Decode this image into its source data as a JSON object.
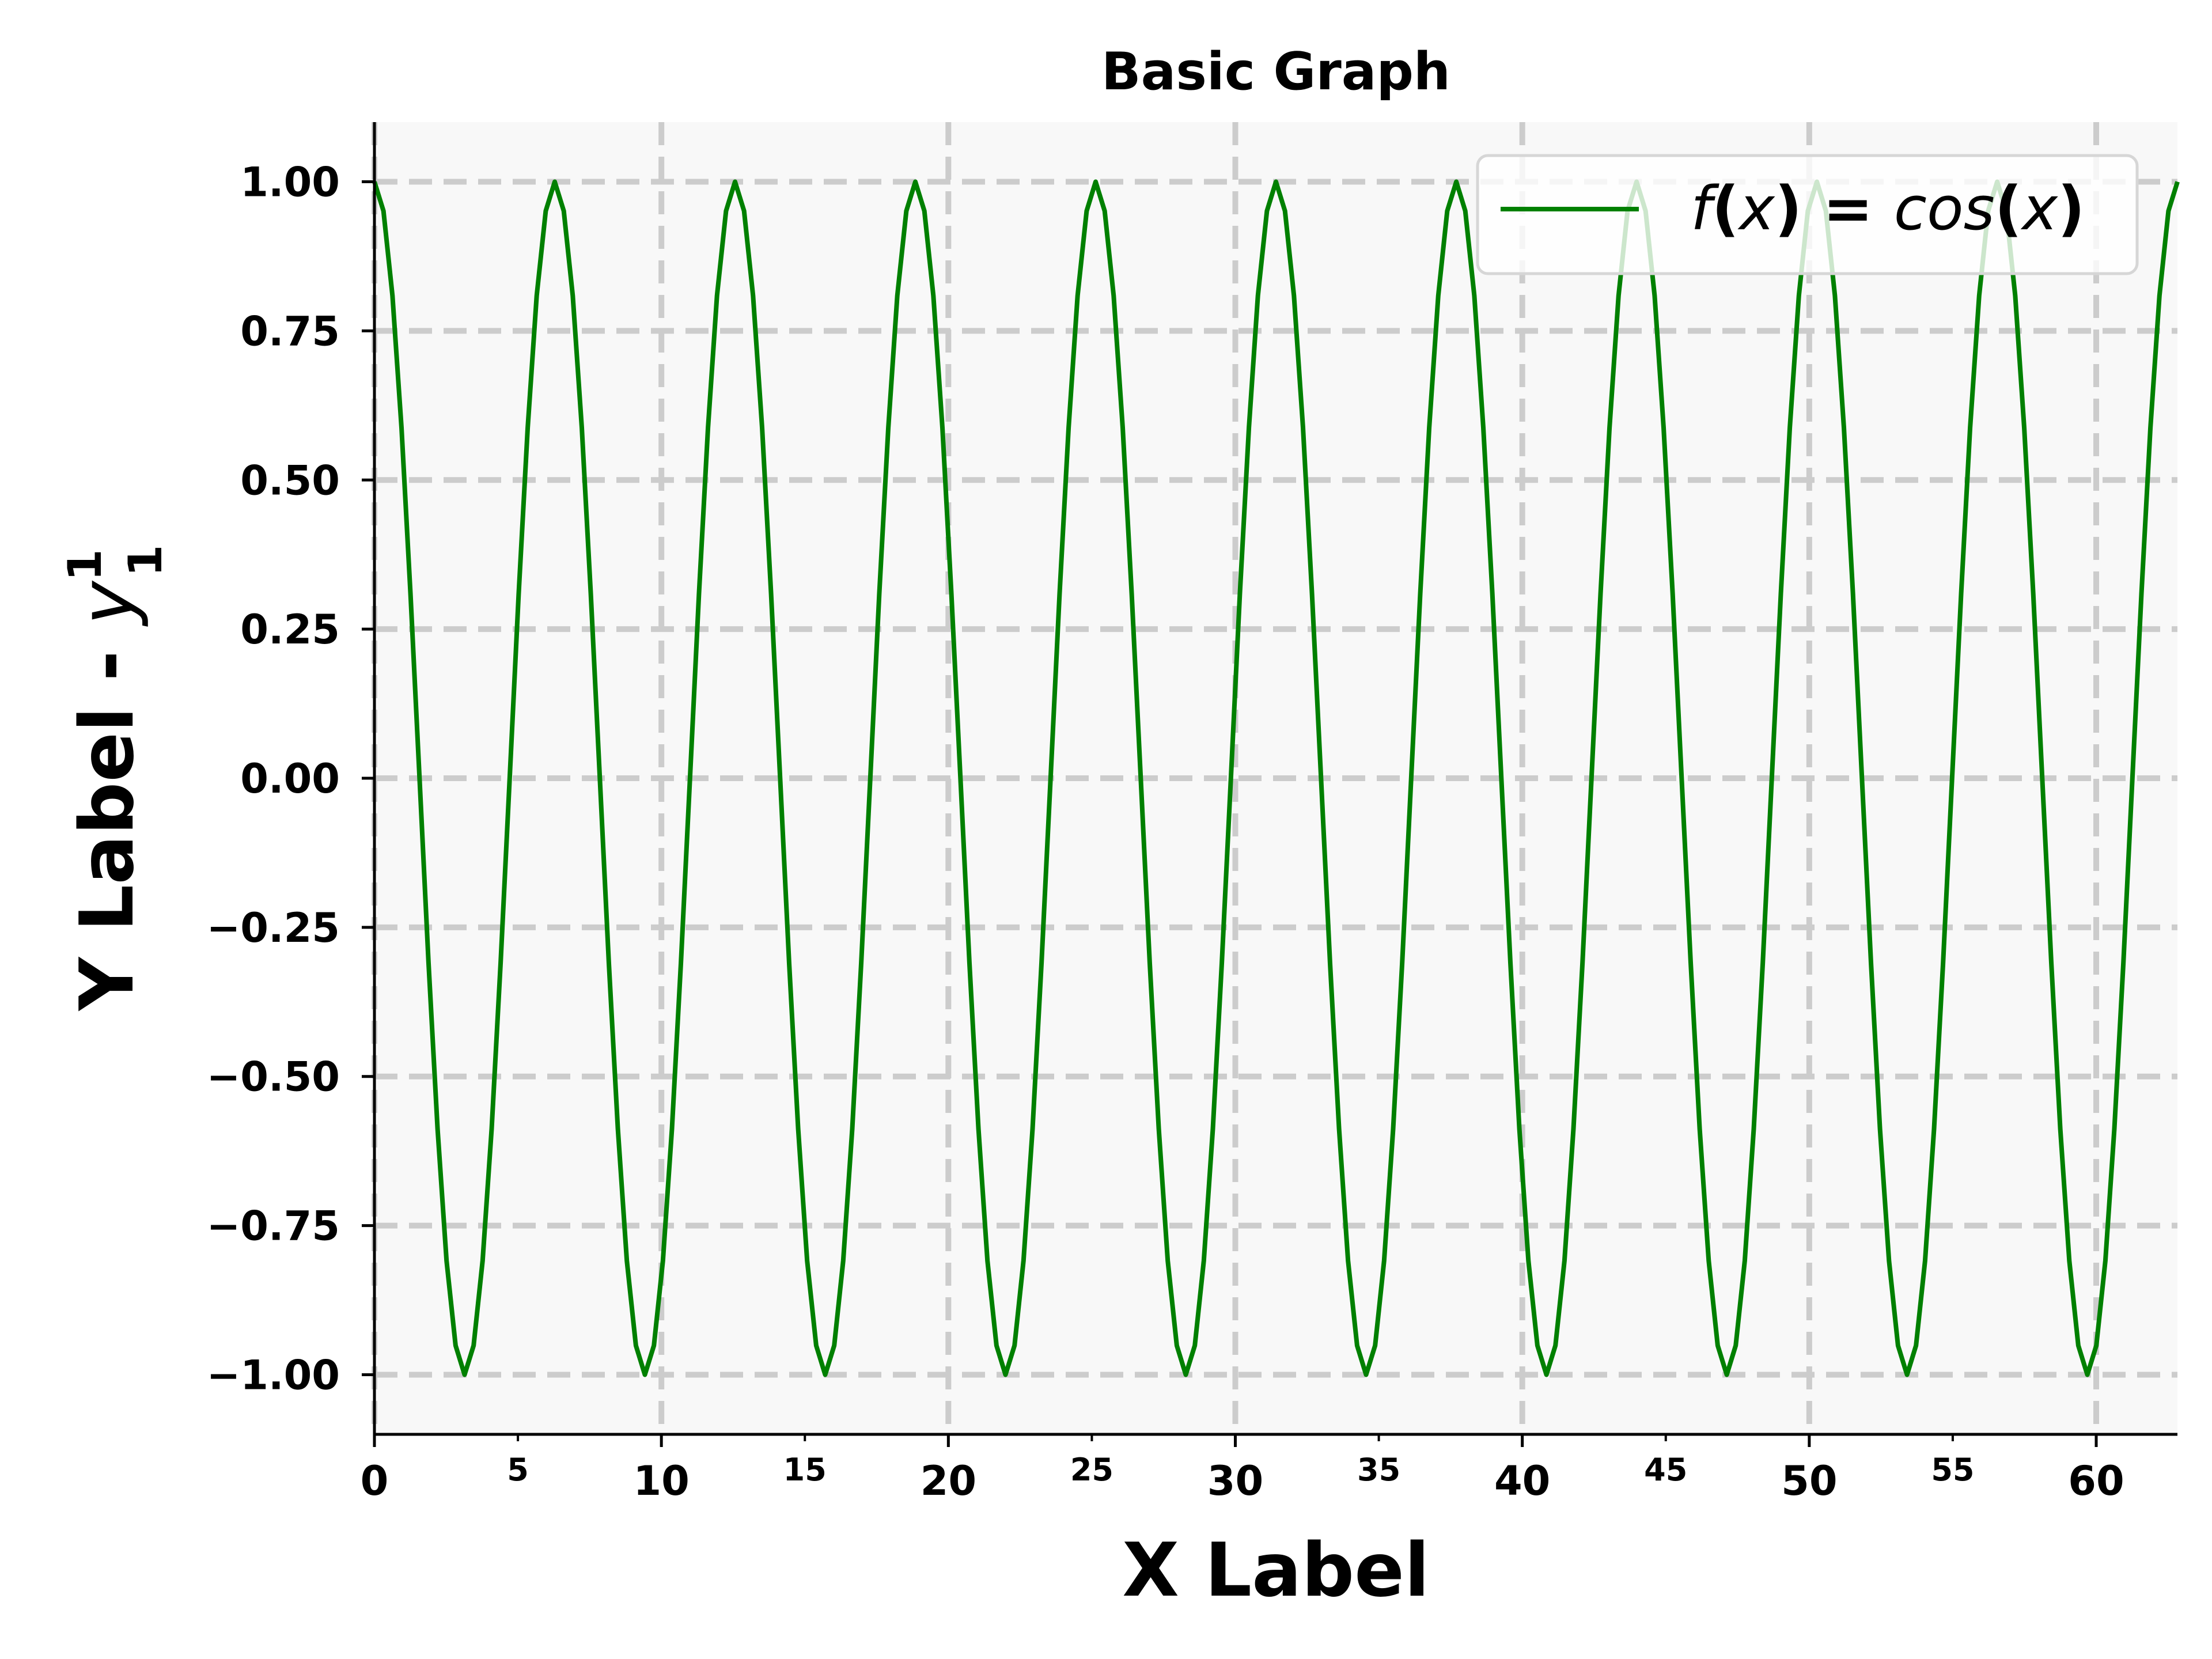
{
  "chart_data": {
    "type": "line",
    "title": "Basic Graph",
    "xlabel": "X Label",
    "ylabel": {
      "prefix": "Y Label - ",
      "symbol": "y",
      "superscript": "1",
      "subscript": "1"
    },
    "xlim": [
      0,
      62.83
    ],
    "ylim": [
      -1.1,
      1.1
    ],
    "x_major_ticks": [
      {
        "value": 0,
        "label": "0"
      },
      {
        "value": 10,
        "label": "10"
      },
      {
        "value": 20,
        "label": "20"
      },
      {
        "value": 30,
        "label": "30"
      },
      {
        "value": 40,
        "label": "40"
      },
      {
        "value": 50,
        "label": "50"
      },
      {
        "value": 60,
        "label": "60"
      }
    ],
    "x_minor_ticks": [
      {
        "value": 5,
        "label": "5"
      },
      {
        "value": 15,
        "label": "15"
      },
      {
        "value": 25,
        "label": "25"
      },
      {
        "value": 35,
        "label": "35"
      },
      {
        "value": 45,
        "label": "45"
      },
      {
        "value": 55,
        "label": "55"
      }
    ],
    "y_ticks": [
      {
        "value": 1.0,
        "label": "1.00"
      },
      {
        "value": 0.75,
        "label": "0.75"
      },
      {
        "value": 0.5,
        "label": "0.50"
      },
      {
        "value": 0.25,
        "label": "0.25"
      },
      {
        "value": 0.0,
        "label": "0.00"
      },
      {
        "value": -0.25,
        "label": "−0.25"
      },
      {
        "value": -0.5,
        "label": "−0.50"
      },
      {
        "value": -0.75,
        "label": "−0.75"
      },
      {
        "value": -1.0,
        "label": "−1.00"
      }
    ],
    "grid": true,
    "legend": {
      "placement": "top-right"
    },
    "series": [
      {
        "name": {
          "f": "f",
          "open": "(",
          "x1": "x",
          "close": ")",
          "eq": " = ",
          "cos": "cos",
          "open2": "(",
          "x2": "x",
          "close2": ")"
        },
        "color": "#008000",
        "function": "cos(x)",
        "x": [
          0,
          0.3142,
          0.6283,
          0.9425,
          1.2566,
          1.5708,
          1.885,
          2.1991,
          2.5133,
          2.8274,
          3.1416,
          3.4558,
          3.7699,
          4.0841,
          4.3982,
          4.7124,
          5.0265,
          5.3407,
          5.6549,
          5.969,
          6.2832,
          6.5973,
          6.9115,
          7.2257,
          7.5398,
          7.854,
          8.1681,
          8.4823,
          8.7965,
          9.1106,
          9.4248,
          9.7389,
          10.0531,
          10.3673,
          10.6814,
          10.9956,
          11.3097,
          11.6239,
          11.9381,
          12.2522,
          12.5664,
          12.8805,
          13.1947,
          13.5088,
          13.823,
          14.1372,
          14.4513,
          14.7655,
          15.0796,
          15.3938,
          15.708,
          16.0221,
          16.3363,
          16.6504,
          16.9646,
          17.2788,
          17.5929,
          17.9071,
          18.2212,
          18.5354,
          18.8496,
          19.1637,
          19.4779,
          19.792,
          20.1062,
          20.4204,
          20.7345,
          21.0487,
          21.3628,
          21.677,
          21.9911,
          22.3053,
          22.6195,
          22.9336,
          23.2478,
          23.5619,
          23.8761,
          24.1903,
          24.5044,
          24.8186,
          25.1327,
          25.4469,
          25.7611,
          26.0752,
          26.3894,
          26.7035,
          27.0177,
          27.3319,
          27.646,
          27.9602,
          28.2743,
          28.5885,
          28.9027,
          29.2168,
          29.531,
          29.8451,
          30.1593,
          30.4735,
          30.7876,
          31.1018,
          31.4159,
          31.7301,
          32.0442,
          32.3584,
          32.6726,
          32.9867,
          33.3009,
          33.615,
          33.9292,
          34.2434,
          34.5575,
          34.8717,
          35.1858,
          35.5,
          35.8142,
          36.1283,
          36.4425,
          36.7566,
          37.0708,
          37.385,
          37.6991,
          38.0133,
          38.3274,
          38.6416,
          38.9558,
          39.2699,
          39.5841,
          39.8982,
          40.2124,
          40.5265,
          40.8407,
          41.1549,
          41.469,
          41.7832,
          42.0973,
          42.4115,
          42.7257,
          43.0398,
          43.354,
          43.6681,
          43.9823,
          44.2965,
          44.6106,
          44.9248,
          45.2389,
          45.5531,
          45.8673,
          46.1814,
          46.4956,
          46.8097,
          47.1239,
          47.4381,
          47.7522,
          48.0664,
          48.3805,
          48.6947,
          49.0088,
          49.323,
          49.6372,
          49.9513,
          50.2655,
          50.5796,
          50.8938,
          51.208,
          51.5221,
          51.8363,
          52.1504,
          52.4646,
          52.7788,
          53.0929,
          53.4071,
          53.7212,
          54.0354,
          54.3496,
          54.6637,
          54.9779,
          55.292,
          55.6062,
          55.9203,
          56.2345,
          56.5487,
          56.8628,
          57.177,
          57.4911,
          57.8053,
          58.1195,
          58.4336,
          58.7478,
          59.0619,
          59.3761,
          59.6903,
          60.0044,
          60.3186,
          60.6327,
          60.9469,
          61.2611,
          61.5752,
          61.8894,
          62.2035,
          62.5177,
          62.8319
        ],
        "y": [
          1.0,
          0.9511,
          0.809,
          0.5878,
          0.309,
          0.0,
          -0.309,
          -0.5878,
          -0.809,
          -0.9511,
          -1.0,
          -0.9511,
          -0.809,
          -0.5878,
          -0.309,
          0.0,
          0.309,
          0.5878,
          0.809,
          0.9511,
          1.0,
          0.9511,
          0.809,
          0.5878,
          0.309,
          0.0,
          -0.309,
          -0.5878,
          -0.809,
          -0.9511,
          -1.0,
          -0.9511,
          -0.809,
          -0.5878,
          -0.309,
          0.0,
          0.309,
          0.5878,
          0.809,
          0.9511,
          1.0,
          0.9511,
          0.809,
          0.5878,
          0.309,
          0.0,
          -0.309,
          -0.5878,
          -0.809,
          -0.9511,
          -1.0,
          -0.9511,
          -0.809,
          -0.5878,
          -0.309,
          0.0,
          0.309,
          0.5878,
          0.809,
          0.9511,
          1.0,
          0.9511,
          0.809,
          0.5878,
          0.309,
          0.0,
          -0.309,
          -0.5878,
          -0.809,
          -0.9511,
          -1.0,
          -0.9511,
          -0.809,
          -0.5878,
          -0.309,
          0.0,
          0.309,
          0.5878,
          0.809,
          0.9511,
          1.0,
          0.9511,
          0.809,
          0.5878,
          0.309,
          0.0,
          -0.309,
          -0.5878,
          -0.809,
          -0.9511,
          -1.0,
          -0.9511,
          -0.809,
          -0.5878,
          -0.309,
          0.0,
          0.309,
          0.5878,
          0.809,
          0.9511,
          1.0,
          0.9511,
          0.809,
          0.5878,
          0.309,
          0.0,
          -0.309,
          -0.5878,
          -0.809,
          -0.9511,
          -1.0,
          -0.9511,
          -0.809,
          -0.5878,
          -0.309,
          0.0,
          0.309,
          0.5878,
          0.809,
          0.9511,
          1.0,
          0.9511,
          0.809,
          0.5878,
          0.309,
          0.0,
          -0.309,
          -0.5878,
          -0.809,
          -0.9511,
          -1.0,
          -0.9511,
          -0.809,
          -0.5878,
          -0.309,
          0.0,
          0.309,
          0.5878,
          0.809,
          0.9511,
          1.0,
          0.9511,
          0.809,
          0.5878,
          0.309,
          0.0,
          -0.309,
          -0.5878,
          -0.809,
          -0.9511,
          -1.0,
          -0.9511,
          -0.809,
          -0.5878,
          -0.309,
          0.0,
          0.309,
          0.5878,
          0.809,
          0.9511,
          1.0,
          0.9511,
          0.809,
          0.5878,
          0.309,
          0.0,
          -0.309,
          -0.5878,
          -0.809,
          -0.9511,
          -1.0,
          -0.9511,
          -0.809,
          -0.5878,
          -0.309,
          0.0,
          0.309,
          0.5878,
          0.809,
          0.9511,
          1.0,
          0.9511,
          0.809,
          0.5878,
          0.309,
          0.0,
          -0.309,
          -0.5878,
          -0.809,
          -0.9511,
          -1.0,
          -0.9511,
          -0.809,
          -0.5878,
          -0.309,
          0.0,
          0.309,
          0.5878,
          0.809,
          0.9511,
          1.0
        ]
      }
    ]
  }
}
